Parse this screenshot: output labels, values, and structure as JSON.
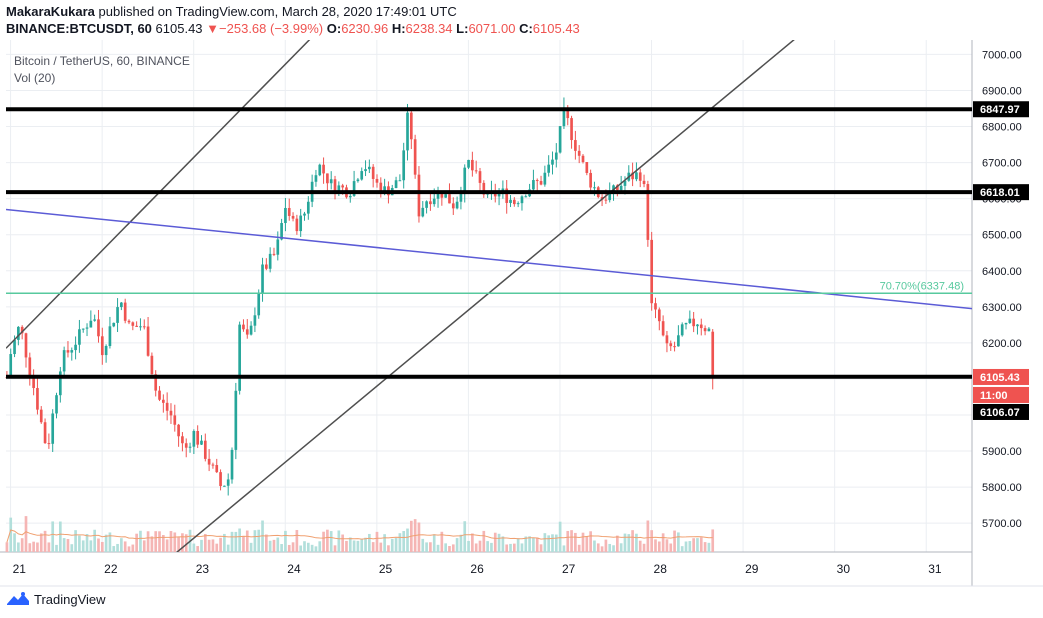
{
  "header": {
    "author": "MakaraKukara",
    "published": "published on TradingView.com, March 28, 2020 17:49:01 UTC",
    "symbol": "BINANCE:BTCUSDT, 60",
    "last": "6105.43",
    "change_arrow": "▼",
    "change": "−253.68 (−3.99%)",
    "o_label": "O:",
    "o_value": "6230.96",
    "h_label": "H:",
    "h_value": "6238.34",
    "l_label": "L:",
    "l_value": "6071.00",
    "c_label": "C:",
    "c_value": "6105.43"
  },
  "legend": {
    "title": "Bitcoin / TetherUS, 60, BINANCE",
    "vol": "Vol (20)"
  },
  "footer": {
    "brand": "TradingView"
  },
  "colors": {
    "up": "#26a69a",
    "down": "#ef5350",
    "up_vol": "#b2dfdb",
    "down_vol": "#f5b5b4",
    "grid": "#ebeef2",
    "channel": "#4f4f4f",
    "trendline": "#5b5bd6",
    "fib": "#57c99e",
    "vol_ma": "#f0a070"
  },
  "chart_data": {
    "type": "candlestick",
    "title": "Bitcoin / TetherUS, 60, BINANCE",
    "ylim": [
      5620,
      7040
    ],
    "y_ticks": [
      "5700.00",
      "5800.00",
      "5900.00",
      "6000.00",
      "6100.00",
      "6200.00",
      "6300.00",
      "6400.00",
      "6500.00",
      "6600.00",
      "6700.00",
      "6800.00",
      "6900.00",
      "7000.00"
    ],
    "x_ticks": [
      {
        "label": "21",
        "day": 21
      },
      {
        "label": "22",
        "day": 22
      },
      {
        "label": "23",
        "day": 23
      },
      {
        "label": "24",
        "day": 24
      },
      {
        "label": "25",
        "day": 25
      },
      {
        "label": "26",
        "day": 26
      },
      {
        "label": "27",
        "day": 27
      },
      {
        "label": "28",
        "day": 28
      },
      {
        "label": "29",
        "day": 29
      },
      {
        "label": "30",
        "day": 30
      },
      {
        "label": "31",
        "day": 31
      }
    ],
    "xlim_days": [
      20.95,
      31.5
    ],
    "last_bar_day": 28.7,
    "horizontal_levels": [
      {
        "price": 6847.97,
        "label": "6847.97"
      },
      {
        "price": 6618.01,
        "label": "6618.01"
      },
      {
        "price": 6106.07,
        "label": "6106.07"
      }
    ],
    "current_price": {
      "price": 6105.43,
      "label": "6105.43",
      "countdown": "11:00"
    },
    "fib_level": {
      "price": 6337.48,
      "label": "70.70%(6337.48)"
    },
    "trendline": {
      "p1": {
        "day": 20.95,
        "price": 6570
      },
      "p2": {
        "day": 31.5,
        "price": 6295
      }
    },
    "channel_lines": [
      {
        "p1": {
          "day": 20.95,
          "price": 6185
        },
        "p2": {
          "day": 24.3,
          "price": 7050
        }
      },
      {
        "p1": {
          "day": 22.25,
          "price": 5500
        },
        "p2": {
          "day": 29.6,
          "price": 7050
        }
      }
    ],
    "price_path": [
      [
        21.0,
        6170
      ],
      [
        21.1,
        6250
      ],
      [
        21.25,
        6080
      ],
      [
        21.4,
        5900
      ],
      [
        21.55,
        6150
      ],
      [
        21.7,
        6200
      ],
      [
        21.9,
        6280
      ],
      [
        22.0,
        6180
      ],
      [
        22.1,
        6250
      ],
      [
        22.2,
        6320
      ],
      [
        22.3,
        6240
      ],
      [
        22.45,
        6250
      ],
      [
        22.6,
        6050
      ],
      [
        22.75,
        6000
      ],
      [
        22.9,
        5900
      ],
      [
        23.0,
        5950
      ],
      [
        23.15,
        5880
      ],
      [
        23.3,
        5800
      ],
      [
        23.4,
        5830
      ],
      [
        23.5,
        6250
      ],
      [
        23.6,
        6200
      ],
      [
        23.75,
        6400
      ],
      [
        23.9,
        6450
      ],
      [
        24.0,
        6580
      ],
      [
        24.1,
        6520
      ],
      [
        24.2,
        6550
      ],
      [
        24.35,
        6700
      ],
      [
        24.5,
        6640
      ],
      [
        24.7,
        6620
      ],
      [
        24.85,
        6700
      ],
      [
        25.0,
        6640
      ],
      [
        25.1,
        6620
      ],
      [
        25.25,
        6650
      ],
      [
        25.35,
        6850
      ],
      [
        25.45,
        6560
      ],
      [
        25.55,
        6600
      ],
      [
        25.7,
        6620
      ],
      [
        25.85,
        6580
      ],
      [
        26.0,
        6700
      ],
      [
        26.1,
        6650
      ],
      [
        26.2,
        6600
      ],
      [
        26.35,
        6620
      ],
      [
        26.5,
        6590
      ],
      [
        26.65,
        6630
      ],
      [
        26.8,
        6650
      ],
      [
        26.95,
        6720
      ],
      [
        27.05,
        6840
      ],
      [
        27.15,
        6760
      ],
      [
        27.3,
        6660
      ],
      [
        27.45,
        6600
      ],
      [
        27.6,
        6620
      ],
      [
        27.75,
        6660
      ],
      [
        27.9,
        6670
      ],
      [
        27.95,
        6550
      ],
      [
        28.0,
        6300
      ],
      [
        28.1,
        6250
      ],
      [
        28.15,
        6180
      ],
      [
        28.25,
        6190
      ],
      [
        28.35,
        6240
      ],
      [
        28.5,
        6260
      ],
      [
        28.6,
        6240
      ],
      [
        28.65,
        6230
      ],
      [
        28.7,
        6105
      ]
    ]
  }
}
